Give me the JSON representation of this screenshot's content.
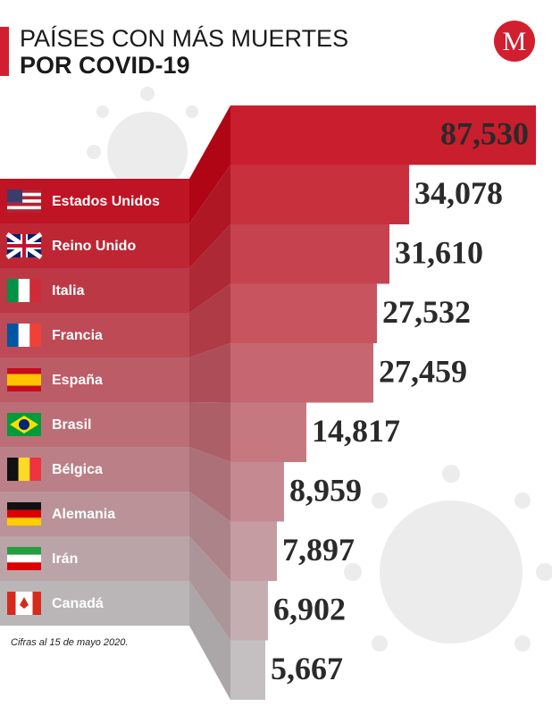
{
  "header": {
    "title_line1": "PAÍSES CON MÁS MUERTES",
    "title_line2": "POR COVID-19",
    "logo": "M"
  },
  "countries": [
    "Estados Unidos",
    "Reino Unido",
    "Italia",
    "Francia",
    "España",
    "Brasil",
    "Bélgica",
    "Alemania",
    "Irán",
    "Canadá"
  ],
  "values": [
    "87,530",
    "34,078",
    "31,610",
    "27,532",
    "27,459",
    "14,817",
    "8,959",
    "7,897",
    "6,902",
    "5,667"
  ],
  "footnote": "Cifras al 15 de mayo 2020."
}
